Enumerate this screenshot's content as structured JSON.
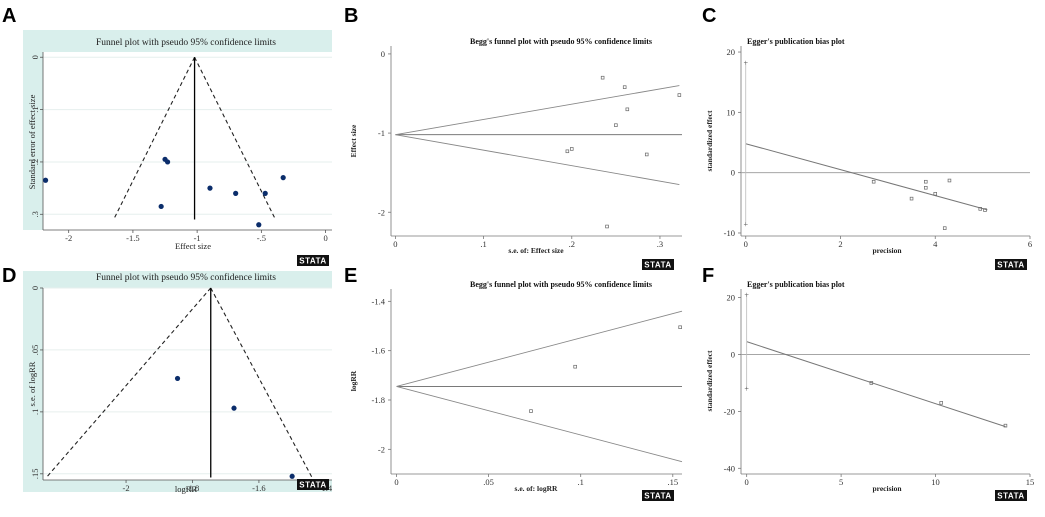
{
  "figure": {
    "stata_logo": "STATA",
    "panels": [
      {
        "id": "A",
        "label": "A",
        "title": "Funnel plot with pseudo 95% confidence limits",
        "xlabel": "Effect size",
        "ylabel": "Standard error of effect size"
      },
      {
        "id": "B",
        "label": "B",
        "title": "Begg's funnel plot with pseudo 95% confidence limits",
        "xlabel": "s.e. of: Effect size",
        "ylabel": "Effect size"
      },
      {
        "id": "C",
        "label": "C",
        "title": "Egger's publication bias plot",
        "xlabel": "precision",
        "ylabel": "standardized effect"
      },
      {
        "id": "D",
        "label": "D",
        "title": "Funnel plot with pseudo 95% confidence limits",
        "xlabel": "logRR",
        "ylabel": "s.e. of logRR"
      },
      {
        "id": "E",
        "label": "E",
        "title": "Begg's funnel plot with pseudo 95% confidence limits",
        "xlabel": "s.e. of: logRR",
        "ylabel": "logRR"
      },
      {
        "id": "F",
        "label": "F",
        "title": "Egger's publication bias plot",
        "xlabel": "precision",
        "ylabel": "standardized effect"
      }
    ]
  },
  "chart_data": [
    {
      "id": "A",
      "type": "scatter",
      "style": "funnel",
      "title": "Funnel plot with pseudo 95% confidence limits",
      "xlabel": "Effect size",
      "ylabel": "Standard error of effect size",
      "xlim": [
        -2.2,
        0.05
      ],
      "ylim": [
        0.33,
        -0.01
      ],
      "inverted_y": true,
      "xticks": [
        {
          "v": -2,
          "t": "-2"
        },
        {
          "v": -1.5,
          "t": "-1.5"
        },
        {
          "v": -1,
          "t": "-1"
        },
        {
          "v": -0.5,
          "t": "-.5"
        },
        {
          "v": 0,
          "t": "0"
        }
      ],
      "yticks": [
        {
          "v": 0,
          "t": "0"
        },
        {
          "v": 0.1,
          "t": ".1"
        },
        {
          "v": 0.2,
          "t": ".2"
        },
        {
          "v": 0.3,
          "t": ".3"
        }
      ],
      "pooled_effect": -1.02,
      "funnel_top_se": 0,
      "funnel_bottom_se": 0.31,
      "funnel_left_x": -1.65,
      "funnel_right_x": -0.39,
      "points": [
        [
          -2.18,
          0.235
        ],
        [
          -1.25,
          0.195
        ],
        [
          -1.23,
          0.2
        ],
        [
          -1.28,
          0.285
        ],
        [
          -0.9,
          0.25
        ],
        [
          -0.7,
          0.26
        ],
        [
          -0.47,
          0.26
        ],
        [
          -0.52,
          0.32
        ],
        [
          -0.33,
          0.23
        ]
      ]
    },
    {
      "id": "B",
      "type": "scatter",
      "style": "begg",
      "title": "Begg's funnel plot with pseudo 95% confidence limits",
      "xlabel": "s.e. of: Effect size",
      "ylabel": "Effect size",
      "xlim": [
        -0.005,
        0.325
      ],
      "ylim": [
        -2.3,
        0.1
      ],
      "xticks": [
        {
          "v": 0,
          "t": "0"
        },
        {
          "v": 0.1,
          "t": ".1"
        },
        {
          "v": 0.2,
          "t": ".2"
        },
        {
          "v": 0.3,
          "t": ".3"
        }
      ],
      "yticks": [
        {
          "v": 0,
          "t": "0"
        },
        {
          "v": -1,
          "t": "-1"
        },
        {
          "v": -2,
          "t": "-2"
        }
      ],
      "pooled_effect": -1.02,
      "upper_end": [
        0.322,
        -0.4
      ],
      "lower_end": [
        0.322,
        -1.65
      ],
      "points": [
        [
          0.235,
          -0.3
        ],
        [
          0.26,
          -0.42
        ],
        [
          0.322,
          -0.52
        ],
        [
          0.263,
          -0.7
        ],
        [
          0.25,
          -0.9
        ],
        [
          0.2,
          -1.2
        ],
        [
          0.195,
          -1.23
        ],
        [
          0.285,
          -1.27
        ],
        [
          0.24,
          -2.18
        ]
      ]
    },
    {
      "id": "C",
      "type": "scatter",
      "style": "egger",
      "title": "Egger's publication bias plot",
      "xlabel": "precision",
      "ylabel": "standardized effect",
      "xlim": [
        -0.1,
        6
      ],
      "ylim": [
        -10.5,
        21
      ],
      "xticks": [
        {
          "v": 0,
          "t": "0"
        },
        {
          "v": 2,
          "t": "2"
        },
        {
          "v": 4,
          "t": "4"
        },
        {
          "v": 6,
          "t": "6"
        }
      ],
      "yticks": [
        {
          "v": 20,
          "t": "20"
        },
        {
          "v": 10,
          "t": "10"
        },
        {
          "v": 0,
          "t": "0"
        },
        {
          "v": -10,
          "t": "-10"
        }
      ],
      "intercept": 4.8,
      "slope": -2.15,
      "line_end_x": 5.1,
      "ci_points": [
        [
          0,
          18.3
        ],
        [
          0,
          -8.5
        ]
      ],
      "points": [
        [
          2.7,
          -1.5
        ],
        [
          3.5,
          -4.3
        ],
        [
          3.8,
          -1.5
        ],
        [
          3.8,
          -2.5
        ],
        [
          4.0,
          -3.5
        ],
        [
          4.3,
          -1.3
        ],
        [
          4.2,
          -9.2
        ],
        [
          4.95,
          -6.0
        ],
        [
          5.05,
          -6.2
        ]
      ]
    },
    {
      "id": "D",
      "type": "scatter",
      "style": "funnel",
      "title": "Funnel plot with pseudo 95% confidence limits",
      "xlabel": "logRR",
      "ylabel": "s.e. of logRR",
      "xlim": [
        -2.25,
        -1.38
      ],
      "ylim": [
        0.155,
        0
      ],
      "inverted_y": true,
      "xticks": [
        {
          "v": -2,
          "t": "-2"
        },
        {
          "v": -1.8,
          "t": "-1.8"
        },
        {
          "v": -1.6,
          "t": "-1.6"
        },
        {
          "v": -1.4,
          "t": "-1.4"
        }
      ],
      "yticks": [
        {
          "v": 0,
          "t": "0"
        },
        {
          "v": 0.05,
          "t": ".05"
        },
        {
          "v": 0.1,
          "t": ".1"
        },
        {
          "v": 0.15,
          "t": ".15"
        }
      ],
      "pooled_effect": -1.745,
      "funnel_top_se": 0,
      "funnel_bottom_se": 0.153,
      "funnel_left_x": -2.24,
      "funnel_right_x": -1.44,
      "points": [
        [
          -1.845,
          0.073
        ],
        [
          -1.675,
          0.097
        ],
        [
          -1.5,
          0.152
        ]
      ]
    },
    {
      "id": "E",
      "type": "scatter",
      "style": "begg",
      "title": "Begg's funnel plot with pseudo 95% confidence limits",
      "xlabel": "s.e. of: logRR",
      "ylabel": "logRR",
      "xlim": [
        -0.003,
        0.155
      ],
      "ylim": [
        -2.1,
        -1.35
      ],
      "xticks": [
        {
          "v": 0,
          "t": "0"
        },
        {
          "v": 0.05,
          "t": ".05"
        },
        {
          "v": 0.1,
          "t": ".1"
        },
        {
          "v": 0.15,
          "t": ".15"
        }
      ],
      "yticks": [
        {
          "v": -1.4,
          "t": "-1.4"
        },
        {
          "v": -1.6,
          "t": "-1.6"
        },
        {
          "v": -1.8,
          "t": "-1.8"
        },
        {
          "v": -2,
          "t": "-2"
        }
      ],
      "pooled_effect": -1.745,
      "upper_end": [
        0.155,
        -1.44
      ],
      "lower_end": [
        0.155,
        -2.05
      ],
      "points": [
        [
          0.073,
          -1.845
        ],
        [
          0.097,
          -1.665
        ],
        [
          0.154,
          -1.505
        ]
      ]
    },
    {
      "id": "F",
      "type": "scatter",
      "style": "egger",
      "title": "Egger's publication bias plot",
      "xlabel": "precision",
      "ylabel": "standardized effect",
      "xlim": [
        -0.3,
        15
      ],
      "ylim": [
        -42,
        23
      ],
      "xticks": [
        {
          "v": 0,
          "t": "0"
        },
        {
          "v": 5,
          "t": "5"
        },
        {
          "v": 10,
          "t": "10"
        },
        {
          "v": 15,
          "t": "15"
        }
      ],
      "yticks": [
        {
          "v": 20,
          "t": "20"
        },
        {
          "v": 0,
          "t": "0"
        },
        {
          "v": -20,
          "t": "-20"
        },
        {
          "v": -40,
          "t": "-40"
        }
      ],
      "intercept": 4.5,
      "slope": -2.18,
      "line_end_x": 13.7,
      "ci_points": [
        [
          0,
          21
        ],
        [
          0,
          -12
        ]
      ],
      "points": [
        [
          6.6,
          -10
        ],
        [
          10.3,
          -17
        ],
        [
          13.7,
          -25
        ]
      ]
    }
  ]
}
